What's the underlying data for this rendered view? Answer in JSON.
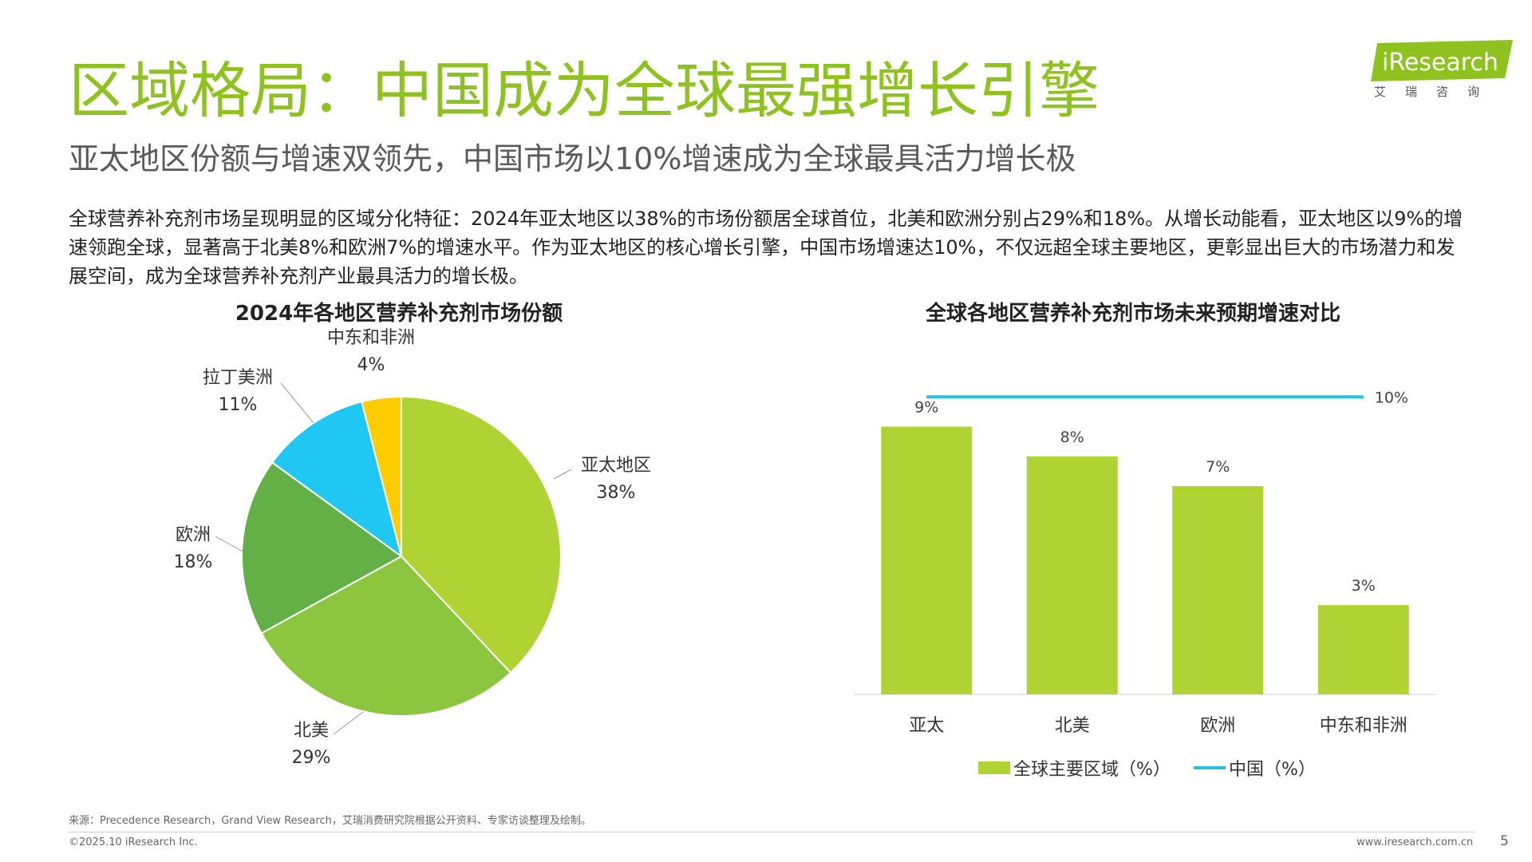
{
  "header": {
    "title": "区域格局：中国成为全球最强增长引擎",
    "subtitle": "亚太地区份额与增速双领先，中国市场以10%增速成为全球最具活力增长极"
  },
  "description": "全球营养补充剂市场呈现明显的区域分化特征：2024年亚太地区以38%的市场份额居全球首位，北美和欧洲分别占29%和18%。从增长动能看，亚太地区以9%的增速领跑全球，显著高于北美8%和欧洲7%的增速水平。作为亚太地区的核心增长引擎，中国市场增速达10%，不仅远超全球主要地区，更彰显出巨大的市场潜力和发展空间，成为全球营养补充剂产业最具活力的增长极。",
  "logo": {
    "text": "iResearch",
    "sub": "艾瑞咨询"
  },
  "footer": {
    "source": "来源：Precedence Research，Grand View Research，艾瑞消费研究院根据公开资料、专家访谈整理及绘制。",
    "copyright": "©2025.10 iResearch Inc.",
    "url": "www.iresearch.com.cn",
    "page": "5"
  },
  "colors": {
    "accent": "#8dc21f",
    "apac": "#b0d334",
    "na": "#8cc63f",
    "eu": "#63b047",
    "latam": "#1fc7f2",
    "mea": "#ffcc00",
    "bar": "#b0d334",
    "china_line": "#2bbde8"
  },
  "chart_data": [
    {
      "type": "pie",
      "title": "2024年各地区营养补充剂市场份额",
      "slices": [
        {
          "label": "亚太地区",
          "value": 38,
          "display": "38%"
        },
        {
          "label": "北美",
          "value": 29,
          "display": "29%"
        },
        {
          "label": "欧洲",
          "value": 18,
          "display": "18%"
        },
        {
          "label": "拉丁美洲",
          "value": 11,
          "display": "11%"
        },
        {
          "label": "中东和非洲",
          "value": 4,
          "display": "4%"
        }
      ]
    },
    {
      "type": "bar",
      "title": "全球各地区营养补充剂市场未来预期增速对比",
      "categories": [
        "亚太",
        "北美",
        "欧洲",
        "中东和非洲"
      ],
      "series": [
        {
          "name": "全球主要区域（%）",
          "values": [
            9,
            8,
            7,
            3
          ],
          "labels": [
            "9%",
            "8%",
            "7%",
            "3%"
          ]
        }
      ],
      "line": {
        "name": "中国（%）",
        "value": 10,
        "label": "10%"
      },
      "ylim": [
        0,
        11
      ]
    }
  ]
}
